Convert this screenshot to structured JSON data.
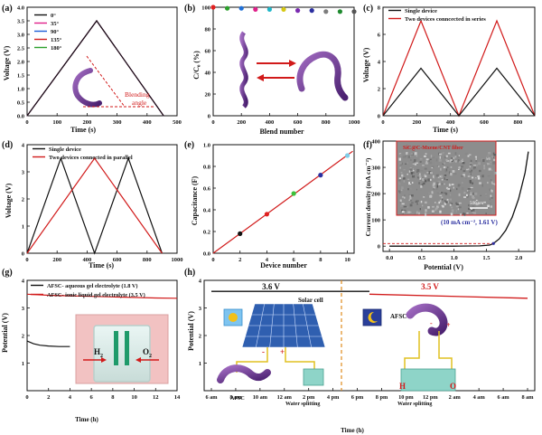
{
  "figure": {
    "panels": [
      {
        "id": "a",
        "letter": "(a)",
        "xlabel": "Time (s)",
        "ylabel": "Voltage (V)"
      },
      {
        "id": "b",
        "letter": "(b)",
        "xlabel": "Blend number",
        "ylabel": "C/C₀ (%)"
      },
      {
        "id": "c",
        "letter": "(c)",
        "xlabel": "Time (s)",
        "ylabel": "Voltage (V)"
      },
      {
        "id": "d",
        "letter": "(d)",
        "xlabel": "Time (s)",
        "ylabel": "Voltage (V)"
      },
      {
        "id": "e",
        "letter": "(e)",
        "xlabel": "Device number",
        "ylabel": "Capacitance (F)"
      },
      {
        "id": "f",
        "letter": "(f)",
        "xlabel": "Potential (V)",
        "ylabel": "Current density (mA cm⁻²)"
      },
      {
        "id": "g",
        "letter": "(g)",
        "xlabel": "Time (h)",
        "ylabel": "Potential (V)"
      },
      {
        "id": "h",
        "letter": "(h)",
        "xlabel": "Time (h)",
        "ylabel": "Potential (V)"
      }
    ],
    "annotations": {
      "a_bend": "Blending",
      "a_bend2": "angle",
      "f_inset": "SiC@C-Mxene/CNT fiber",
      "f_scale": "500 nm",
      "f_point": "(10 mA cm⁻², 1.61 V)",
      "g_h2": "H",
      "g_h2_sub": "2",
      "g_o2": "O",
      "g_o2_sub": "2",
      "h_left": "3.6 V",
      "h_right": "3.5 V",
      "h_solar": "Solar cell",
      "h_afsc": "AFSC",
      "h_minus": "-",
      "h_plus": "+",
      "h_afsc_small": "AFSC",
      "h_water1": "Water splitting",
      "h_water2": "Water splitting",
      "h_low_h": "H",
      "h_low_o": "O"
    }
  },
  "chart_data": [
    {
      "panel": "a",
      "type": "line",
      "xlabel": "Time (s)",
      "ylabel": "Voltage (V)",
      "xlim": [
        0,
        500
      ],
      "ylim": [
        0,
        4.0
      ],
      "xticks": [
        0,
        100,
        200,
        300,
        400,
        500
      ],
      "yticks": [
        0.0,
        0.5,
        1.0,
        1.5,
        2.0,
        2.5,
        3.0,
        3.5,
        4.0
      ],
      "legend": "top-left",
      "series": [
        {
          "name": "0°",
          "color": "#111111",
          "x": [
            0,
            232,
            455
          ],
          "y": [
            0,
            3.5,
            0
          ]
        },
        {
          "name": "35°",
          "color": "#e0208a",
          "x": [
            0,
            232,
            455
          ],
          "y": [
            0,
            3.5,
            0
          ]
        },
        {
          "name": "90°",
          "color": "#1f5fd6",
          "x": [
            0,
            232,
            455
          ],
          "y": [
            0,
            3.5,
            0
          ]
        },
        {
          "name": "135°",
          "color": "#d11a1a",
          "x": [
            0,
            232,
            455
          ],
          "y": [
            0,
            3.5,
            0
          ]
        },
        {
          "name": "180°",
          "color": "#2ba02b",
          "x": [
            0,
            232,
            455
          ],
          "y": [
            0,
            3.5,
            0
          ]
        }
      ]
    },
    {
      "panel": "b",
      "type": "scatter",
      "xlabel": "Blend number",
      "ylabel": "C/C₀ (%)",
      "xlim": [
        0,
        1000
      ],
      "ylim": [
        0,
        100
      ],
      "xticks": [
        0,
        200,
        400,
        600,
        800,
        1000
      ],
      "yticks": [
        0,
        20,
        40,
        60,
        80,
        100
      ],
      "x": [
        0,
        100,
        200,
        300,
        400,
        500,
        600,
        700,
        800,
        900,
        1000
      ],
      "y": [
        100,
        99,
        99,
        98,
        98,
        98,
        97,
        97,
        96,
        96,
        96
      ],
      "colors": [
        "#e02020",
        "#2ca02c",
        "#1f6fd6",
        "#e0208a",
        "#1fb7c9",
        "#d6c814",
        "#7a2ab0",
        "#2b2fa0",
        "#7d7d7d",
        "#1f8a2f",
        "#555555"
      ]
    },
    {
      "panel": "c",
      "type": "line",
      "xlabel": "Time (s)",
      "ylabel": "Voltage (V)",
      "xlim": [
        0,
        900
      ],
      "ylim": [
        0,
        8
      ],
      "xticks": [
        0,
        200,
        400,
        600,
        800
      ],
      "yticks": [
        0,
        2,
        4,
        6,
        8
      ],
      "legend": "top-center",
      "series": [
        {
          "name": "Single device",
          "color": "#111111",
          "x": [
            0,
            225,
            450,
            675,
            900
          ],
          "y": [
            0,
            3.5,
            0,
            3.5,
            0
          ]
        },
        {
          "name": "Two devices conncected in series",
          "color": "#d11a1a",
          "x": [
            0,
            225,
            450,
            675,
            900
          ],
          "y": [
            0,
            7.0,
            0,
            7.0,
            0
          ]
        }
      ]
    },
    {
      "panel": "d",
      "type": "line",
      "xlabel": "Time (s)",
      "ylabel": "Voltage (V)",
      "xlim": [
        0,
        1000
      ],
      "ylim": [
        0,
        4
      ],
      "xticks": [
        0,
        200,
        400,
        600,
        800,
        1000
      ],
      "yticks": [
        0,
        1,
        2,
        3,
        4
      ],
      "legend": "top-left",
      "series": [
        {
          "name": "Single device",
          "color": "#111111",
          "x": [
            0,
            225,
            450,
            675,
            900
          ],
          "y": [
            0,
            3.5,
            0,
            3.5,
            0
          ]
        },
        {
          "name": "Two devices connected in parallel",
          "color": "#d11a1a",
          "x": [
            0,
            450,
            900
          ],
          "y": [
            0,
            3.5,
            0
          ]
        }
      ]
    },
    {
      "panel": "e",
      "type": "scatter",
      "xlabel": "Device number",
      "ylabel": "Capacitance (F)",
      "xlim": [
        0,
        10.5
      ],
      "ylim": [
        0,
        1.0
      ],
      "xticks": [
        0,
        2,
        4,
        6,
        8,
        10
      ],
      "yticks": [
        0.0,
        0.2,
        0.4,
        0.6,
        0.8,
        1.0
      ],
      "x": [
        2,
        4,
        6,
        8,
        10
      ],
      "y": [
        0.18,
        0.36,
        0.55,
        0.72,
        0.9
      ],
      "colors": [
        "#111111",
        "#e02020",
        "#3cc23c",
        "#2b2fa0",
        "#7fcde8"
      ],
      "fit": {
        "color": "#d11a1a",
        "x": [
          0,
          10.4
        ],
        "y": [
          0,
          0.94
        ]
      }
    },
    {
      "panel": "f",
      "type": "line",
      "xlabel": "Potential (V)",
      "ylabel": "Current density (mA cm⁻²)",
      "xlim": [
        -0.1,
        2.25
      ],
      "ylim": [
        -20,
        400
      ],
      "xticks": [
        0.0,
        0.5,
        1.0,
        1.5,
        2.0
      ],
      "yticks": [
        0,
        100,
        200,
        300,
        400
      ],
      "series": [
        {
          "name": "",
          "color": "#111111",
          "x": [
            0.0,
            0.5,
            1.0,
            1.4,
            1.55,
            1.61,
            1.7,
            1.8,
            1.9,
            2.0,
            2.1,
            2.15
          ],
          "y": [
            0,
            0,
            0,
            1,
            4,
            10,
            28,
            60,
            110,
            180,
            280,
            360
          ]
        }
      ],
      "annotation_point": {
        "x": 1.61,
        "y": 10
      }
    },
    {
      "panel": "g",
      "type": "line",
      "xlabel": "Time (h)",
      "ylabel": "Potential (V)",
      "xlim": [
        0,
        14
      ],
      "ylim": [
        0,
        4
      ],
      "xticks": [
        0,
        2,
        4,
        6,
        8,
        10,
        12,
        14
      ],
      "yticks": [
        1,
        2,
        3,
        4
      ],
      "legend": "top-left",
      "series": [
        {
          "name": "AFSC- aqueous gel electrolyte (1.8 V)",
          "color": "#111111",
          "x": [
            0,
            0.6,
            1.2,
            2,
            3,
            4
          ],
          "y": [
            1.8,
            1.7,
            1.65,
            1.62,
            1.6,
            1.6
          ]
        },
        {
          "name": "AFSC- ionic liquid gel electrolyte (3.5 V)",
          "color": "#d11a1a",
          "x": [
            0,
            2,
            4,
            6,
            8,
            10,
            12,
            14
          ],
          "y": [
            3.5,
            3.46,
            3.44,
            3.42,
            3.4,
            3.38,
            3.36,
            3.35
          ]
        }
      ]
    },
    {
      "panel": "h",
      "type": "line",
      "xlabel": "Time (h)",
      "ylabel": "Potential (V)",
      "ylim": [
        0,
        4
      ],
      "yticks": [
        1,
        2,
        3,
        4
      ],
      "xticks": [
        "6 am",
        "8 am",
        "10 am",
        "12 am",
        "2 pm",
        "4 pm",
        "6 pm",
        "8 pm",
        "10 pm",
        "12 pm",
        "2 am",
        "4 am",
        "6 am",
        "8 am"
      ],
      "series": [
        {
          "name": "",
          "color": "#111111",
          "x": [
            0,
            6.5
          ],
          "y": [
            3.6,
            3.6
          ]
        },
        {
          "name": "",
          "color": "#d11a1a",
          "x": [
            6.5,
            13
          ],
          "y": [
            3.5,
            3.35
          ]
        }
      ]
    }
  ]
}
